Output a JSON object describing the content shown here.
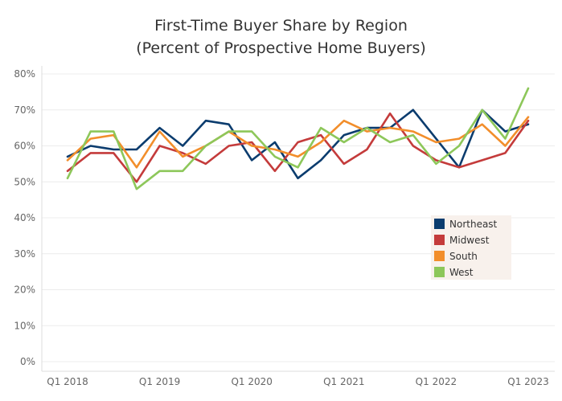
{
  "chart_data": {
    "type": "line",
    "title": "First-Time Buyer Share by Region",
    "subtitle": "(Percent of Prospective Home Buyers)",
    "xlabel": "",
    "ylabel": "",
    "ylim": [
      0,
      80
    ],
    "yticks": [
      "0%",
      "10%",
      "20%",
      "30%",
      "40%",
      "50%",
      "60%",
      "70%",
      "80%"
    ],
    "x": [
      "Q1 2018",
      "Q2 2018",
      "Q3 2018",
      "Q4 2018",
      "Q1 2019",
      "Q2 2019",
      "Q3 2019",
      "Q4 2019",
      "Q1 2020",
      "Q2 2020",
      "Q3 2020",
      "Q4 2020",
      "Q1 2021",
      "Q2 2021",
      "Q3 2021",
      "Q4 2021",
      "Q1 2022",
      "Q2 2022",
      "Q3 2022",
      "Q4 2022",
      "Q1 2023"
    ],
    "xtick_labels": [
      "Q1 2018",
      "Q1 2019",
      "Q1 2020",
      "Q1 2021",
      "Q1 2022",
      "Q1 2023"
    ],
    "grid": true,
    "legend_position": "right",
    "series": [
      {
        "name": "Northeast",
        "color": "#0b3c6e",
        "values": [
          57,
          60,
          59,
          59,
          65,
          60,
          67,
          66,
          56,
          61,
          51,
          56,
          63,
          65,
          65,
          70,
          62,
          54,
          70,
          64,
          66
        ]
      },
      {
        "name": "Midwest",
        "color": "#c43b3b",
        "values": [
          53,
          58,
          58,
          50,
          60,
          58,
          55,
          60,
          61,
          53,
          61,
          63,
          55,
          59,
          69,
          60,
          56,
          54,
          56,
          58,
          67
        ]
      },
      {
        "name": "South",
        "color": "#f28e2b",
        "values": [
          56,
          62,
          63,
          54,
          64,
          57,
          60,
          64,
          60,
          59,
          57,
          61,
          67,
          64,
          65,
          64,
          61,
          62,
          66,
          60,
          68
        ]
      },
      {
        "name": "West",
        "color": "#8dc75a",
        "values": [
          51,
          64,
          64,
          48,
          53,
          53,
          60,
          64,
          64,
          57,
          54,
          65,
          61,
          65,
          61,
          63,
          55,
          60,
          70,
          62,
          76
        ]
      }
    ]
  }
}
